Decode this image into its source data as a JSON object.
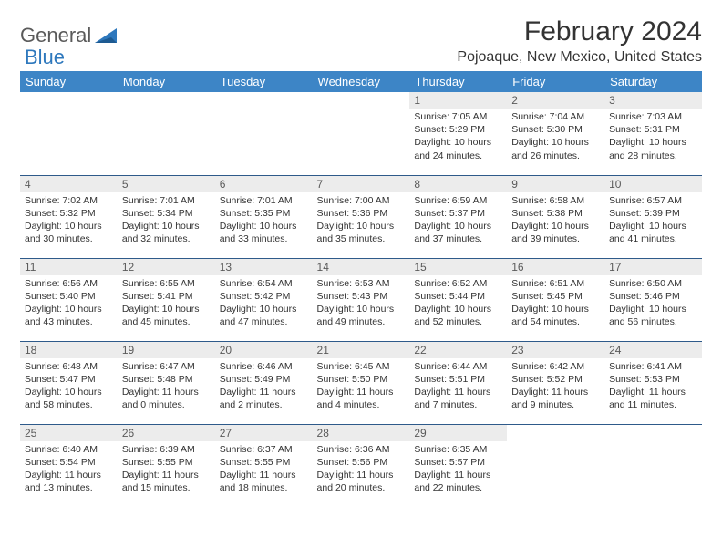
{
  "brand": {
    "part1": "General",
    "part2": "Blue"
  },
  "title": "February 2024",
  "location": "Pojoaque, New Mexico, United States",
  "colors": {
    "header_bg": "#3d85c6",
    "header_fg": "#ffffff",
    "daynum_bg": "#ececec",
    "row_divider": "#2e5a8a",
    "text": "#333333",
    "brand_gray": "#5a5a5a",
    "brand_blue": "#2e78bd"
  },
  "day_labels": [
    "Sunday",
    "Monday",
    "Tuesday",
    "Wednesday",
    "Thursday",
    "Friday",
    "Saturday"
  ],
  "weeks": [
    [
      {
        "n": "",
        "sr": "",
        "ss": "",
        "dl": ""
      },
      {
        "n": "",
        "sr": "",
        "ss": "",
        "dl": ""
      },
      {
        "n": "",
        "sr": "",
        "ss": "",
        "dl": ""
      },
      {
        "n": "",
        "sr": "",
        "ss": "",
        "dl": ""
      },
      {
        "n": "1",
        "sr": "Sunrise: 7:05 AM",
        "ss": "Sunset: 5:29 PM",
        "dl": "Daylight: 10 hours and 24 minutes."
      },
      {
        "n": "2",
        "sr": "Sunrise: 7:04 AM",
        "ss": "Sunset: 5:30 PM",
        "dl": "Daylight: 10 hours and 26 minutes."
      },
      {
        "n": "3",
        "sr": "Sunrise: 7:03 AM",
        "ss": "Sunset: 5:31 PM",
        "dl": "Daylight: 10 hours and 28 minutes."
      }
    ],
    [
      {
        "n": "4",
        "sr": "Sunrise: 7:02 AM",
        "ss": "Sunset: 5:32 PM",
        "dl": "Daylight: 10 hours and 30 minutes."
      },
      {
        "n": "5",
        "sr": "Sunrise: 7:01 AM",
        "ss": "Sunset: 5:34 PM",
        "dl": "Daylight: 10 hours and 32 minutes."
      },
      {
        "n": "6",
        "sr": "Sunrise: 7:01 AM",
        "ss": "Sunset: 5:35 PM",
        "dl": "Daylight: 10 hours and 33 minutes."
      },
      {
        "n": "7",
        "sr": "Sunrise: 7:00 AM",
        "ss": "Sunset: 5:36 PM",
        "dl": "Daylight: 10 hours and 35 minutes."
      },
      {
        "n": "8",
        "sr": "Sunrise: 6:59 AM",
        "ss": "Sunset: 5:37 PM",
        "dl": "Daylight: 10 hours and 37 minutes."
      },
      {
        "n": "9",
        "sr": "Sunrise: 6:58 AM",
        "ss": "Sunset: 5:38 PM",
        "dl": "Daylight: 10 hours and 39 minutes."
      },
      {
        "n": "10",
        "sr": "Sunrise: 6:57 AM",
        "ss": "Sunset: 5:39 PM",
        "dl": "Daylight: 10 hours and 41 minutes."
      }
    ],
    [
      {
        "n": "11",
        "sr": "Sunrise: 6:56 AM",
        "ss": "Sunset: 5:40 PM",
        "dl": "Daylight: 10 hours and 43 minutes."
      },
      {
        "n": "12",
        "sr": "Sunrise: 6:55 AM",
        "ss": "Sunset: 5:41 PM",
        "dl": "Daylight: 10 hours and 45 minutes."
      },
      {
        "n": "13",
        "sr": "Sunrise: 6:54 AM",
        "ss": "Sunset: 5:42 PM",
        "dl": "Daylight: 10 hours and 47 minutes."
      },
      {
        "n": "14",
        "sr": "Sunrise: 6:53 AM",
        "ss": "Sunset: 5:43 PM",
        "dl": "Daylight: 10 hours and 49 minutes."
      },
      {
        "n": "15",
        "sr": "Sunrise: 6:52 AM",
        "ss": "Sunset: 5:44 PM",
        "dl": "Daylight: 10 hours and 52 minutes."
      },
      {
        "n": "16",
        "sr": "Sunrise: 6:51 AM",
        "ss": "Sunset: 5:45 PM",
        "dl": "Daylight: 10 hours and 54 minutes."
      },
      {
        "n": "17",
        "sr": "Sunrise: 6:50 AM",
        "ss": "Sunset: 5:46 PM",
        "dl": "Daylight: 10 hours and 56 minutes."
      }
    ],
    [
      {
        "n": "18",
        "sr": "Sunrise: 6:48 AM",
        "ss": "Sunset: 5:47 PM",
        "dl": "Daylight: 10 hours and 58 minutes."
      },
      {
        "n": "19",
        "sr": "Sunrise: 6:47 AM",
        "ss": "Sunset: 5:48 PM",
        "dl": "Daylight: 11 hours and 0 minutes."
      },
      {
        "n": "20",
        "sr": "Sunrise: 6:46 AM",
        "ss": "Sunset: 5:49 PM",
        "dl": "Daylight: 11 hours and 2 minutes."
      },
      {
        "n": "21",
        "sr": "Sunrise: 6:45 AM",
        "ss": "Sunset: 5:50 PM",
        "dl": "Daylight: 11 hours and 4 minutes."
      },
      {
        "n": "22",
        "sr": "Sunrise: 6:44 AM",
        "ss": "Sunset: 5:51 PM",
        "dl": "Daylight: 11 hours and 7 minutes."
      },
      {
        "n": "23",
        "sr": "Sunrise: 6:42 AM",
        "ss": "Sunset: 5:52 PM",
        "dl": "Daylight: 11 hours and 9 minutes."
      },
      {
        "n": "24",
        "sr": "Sunrise: 6:41 AM",
        "ss": "Sunset: 5:53 PM",
        "dl": "Daylight: 11 hours and 11 minutes."
      }
    ],
    [
      {
        "n": "25",
        "sr": "Sunrise: 6:40 AM",
        "ss": "Sunset: 5:54 PM",
        "dl": "Daylight: 11 hours and 13 minutes."
      },
      {
        "n": "26",
        "sr": "Sunrise: 6:39 AM",
        "ss": "Sunset: 5:55 PM",
        "dl": "Daylight: 11 hours and 15 minutes."
      },
      {
        "n": "27",
        "sr": "Sunrise: 6:37 AM",
        "ss": "Sunset: 5:55 PM",
        "dl": "Daylight: 11 hours and 18 minutes."
      },
      {
        "n": "28",
        "sr": "Sunrise: 6:36 AM",
        "ss": "Sunset: 5:56 PM",
        "dl": "Daylight: 11 hours and 20 minutes."
      },
      {
        "n": "29",
        "sr": "Sunrise: 6:35 AM",
        "ss": "Sunset: 5:57 PM",
        "dl": "Daylight: 11 hours and 22 minutes."
      },
      {
        "n": "",
        "sr": "",
        "ss": "",
        "dl": ""
      },
      {
        "n": "",
        "sr": "",
        "ss": "",
        "dl": ""
      }
    ]
  ]
}
